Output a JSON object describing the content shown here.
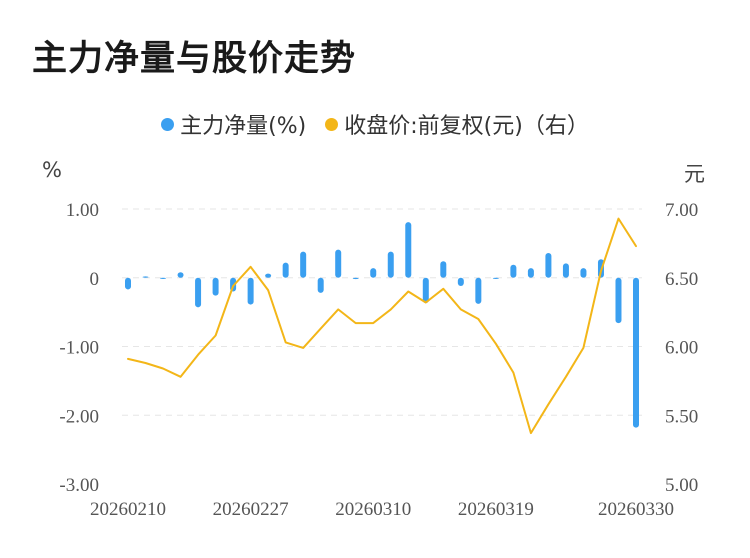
{
  "title": "主力净量与股价走势",
  "legend": {
    "net": "主力净量(%)",
    "price": "收盘价:前复权(元)（右）"
  },
  "colors": {
    "net": "#3a9ff0",
    "price": "#f3b618",
    "grid": "#e6e6e6"
  },
  "chart_data": {
    "type": "bar+line",
    "y_left_unit": "%",
    "y_right_unit": "元",
    "y_left_ticks": [
      "1.00",
      "0",
      "-1.00",
      "-2.00",
      "-3.00"
    ],
    "y_right_ticks": [
      "7.00",
      "6.50",
      "6.00",
      "5.50",
      "5.00"
    ],
    "y_left_range": [
      -3,
      1
    ],
    "y_right_range": [
      5,
      7
    ],
    "x_tick_labels": [
      "20260210",
      "20260227",
      "20260310",
      "20260319",
      "20260330"
    ],
    "x_tick_index": [
      0,
      7,
      14,
      21,
      29
    ],
    "series": [
      {
        "name": "主力净量(%)",
        "type": "bar",
        "values": [
          -0.17,
          0.02,
          -0.01,
          0.08,
          -0.43,
          -0.26,
          -0.2,
          -0.39,
          0.06,
          0.22,
          0.38,
          -0.22,
          0.41,
          -0.02,
          0.14,
          0.38,
          0.81,
          -0.37,
          0.24,
          -0.12,
          -0.38,
          0.0,
          0.19,
          0.14,
          0.36,
          0.21,
          0.14,
          0.27,
          -0.66,
          -2.18
        ]
      },
      {
        "name": "收盘价:前复权(元)（右）",
        "type": "line",
        "values": [
          5.91,
          5.88,
          5.84,
          5.78,
          5.94,
          6.08,
          6.44,
          6.58,
          6.41,
          6.03,
          5.99,
          6.13,
          6.27,
          6.17,
          6.17,
          6.27,
          6.4,
          6.32,
          6.42,
          6.27,
          6.2,
          6.02,
          5.81,
          5.37,
          5.58,
          5.78,
          5.99,
          6.55,
          6.93,
          6.73
        ]
      }
    ]
  }
}
